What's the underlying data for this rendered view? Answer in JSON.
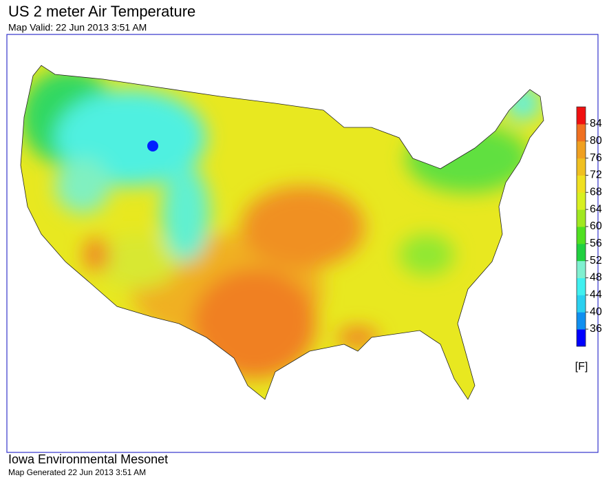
{
  "header": {
    "title": "US 2 meter Air Temperature",
    "subtitle": "Map Valid: 22 Jun 2013 3:51 AM"
  },
  "legend": {
    "ticks": [
      36,
      40,
      44,
      48,
      52,
      56,
      60,
      64,
      68,
      72,
      76,
      80,
      84
    ],
    "colors": [
      "#0000ff",
      "#0f8ff0",
      "#2ad0f0",
      "#40f0f0",
      "#80f0d0",
      "#20d040",
      "#50e020",
      "#a0e820",
      "#d8f020",
      "#f0e020",
      "#f0c020",
      "#f0a020",
      "#f07020",
      "#f01010"
    ],
    "unit": "[F]"
  },
  "footer": {
    "org": "Iowa Environmental Mesonet",
    "generated": "Map Generated 22 Jun 2013 3:51 AM"
  }
}
